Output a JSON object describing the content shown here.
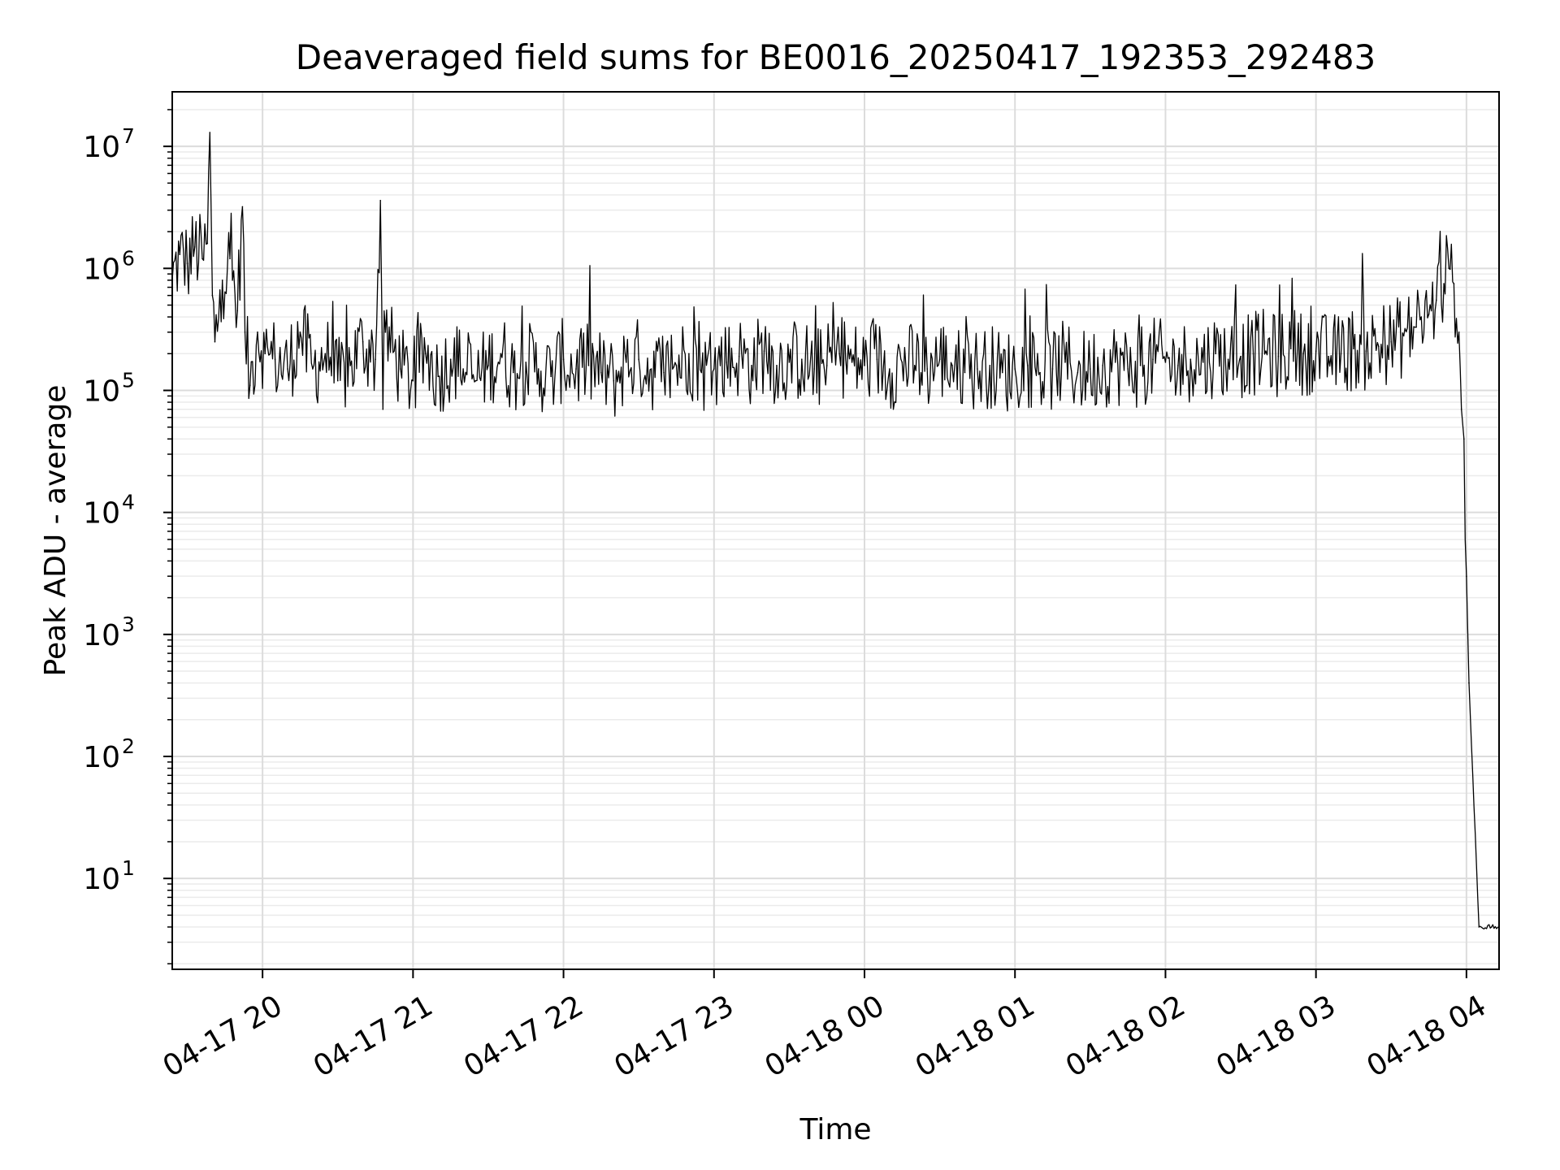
{
  "chart_data": {
    "type": "line",
    "title": "Deaveraged field sums for BE0016_20250417_192353_292483",
    "xlabel": "Time",
    "ylabel": "Peak ADU - average",
    "yscale": "log",
    "grid": true,
    "legend": "none",
    "line_color": "#000000",
    "xlim": [
      "2025-04-17 19:24",
      "2025-04-18 04:13"
    ],
    "ylim": [
      1.8,
      28000000
    ],
    "x_ticks": [
      "2025-04-17 20:00",
      "2025-04-17 21:00",
      "2025-04-17 22:00",
      "2025-04-17 23:00",
      "2025-04-18 00:00",
      "2025-04-18 01:00",
      "2025-04-18 02:00",
      "2025-04-18 03:00",
      "2025-04-18 04:00"
    ],
    "x_tick_labels": [
      "04-17 20",
      "04-17 21",
      "04-17 22",
      "04-17 23",
      "04-18 00",
      "04-18 01",
      "04-18 02",
      "04-18 03",
      "04-18 04"
    ],
    "y_ticks": [
      {
        "value": 10,
        "base": "10",
        "exp": "1"
      },
      {
        "value": 100,
        "base": "10",
        "exp": "2"
      },
      {
        "value": 1000,
        "base": "10",
        "exp": "3"
      },
      {
        "value": 10000,
        "base": "10",
        "exp": "4"
      },
      {
        "value": 100000,
        "base": "10",
        "exp": "5"
      },
      {
        "value": 1000000,
        "base": "10",
        "exp": "6"
      },
      {
        "value": 10000000,
        "base": "10",
        "exp": "7"
      }
    ],
    "series": [
      {
        "x": [
          "2025-04-17 19:24",
          "2025-04-17 19:27",
          "2025-04-17 19:30",
          "2025-04-17 19:33",
          "2025-04-17 19:36",
          "2025-04-17 19:38",
          "2025-04-17 19:39",
          "2025-04-17 19:40",
          "2025-04-17 19:41",
          "2025-04-17 19:44",
          "2025-04-17 19:47",
          "2025-04-17 19:50",
          "2025-04-17 19:52",
          "2025-04-17 19:53",
          "2025-04-17 19:55",
          "2025-04-17 19:58",
          "2025-04-17 20:01",
          "2025-04-17 20:05",
          "2025-04-17 20:10",
          "2025-04-17 20:15",
          "2025-04-17 20:20",
          "2025-04-17 20:25",
          "2025-04-17 20:30",
          "2025-04-17 20:35",
          "2025-04-17 20:40",
          "2025-04-17 20:45",
          "2025-04-17 20:47",
          "2025-04-17 20:48",
          "2025-04-17 20:49",
          "2025-04-17 20:55",
          "2025-04-17 21:00",
          "2025-04-17 21:05",
          "2025-04-17 21:10",
          "2025-04-17 21:15",
          "2025-04-17 21:20",
          "2025-04-17 21:25",
          "2025-04-17 21:30",
          "2025-04-17 21:35",
          "2025-04-17 21:40",
          "2025-04-17 21:45",
          "2025-04-17 21:50",
          "2025-04-17 21:55",
          "2025-04-17 22:00",
          "2025-04-17 22:05",
          "2025-04-17 22:10",
          "2025-04-17 22:15",
          "2025-04-17 22:20",
          "2025-04-17 22:25",
          "2025-04-17 22:30",
          "2025-04-17 22:35",
          "2025-04-17 22:40",
          "2025-04-17 22:45",
          "2025-04-17 22:50",
          "2025-04-17 22:55",
          "2025-04-17 23:00",
          "2025-04-17 23:05",
          "2025-04-17 23:10",
          "2025-04-17 23:15",
          "2025-04-17 23:20",
          "2025-04-17 23:25",
          "2025-04-17 23:30",
          "2025-04-17 23:35",
          "2025-04-17 23:40",
          "2025-04-17 23:45",
          "2025-04-17 23:50",
          "2025-04-17 23:55",
          "2025-04-18 00:00",
          "2025-04-18 00:05",
          "2025-04-18 00:10",
          "2025-04-18 00:15",
          "2025-04-18 00:20",
          "2025-04-18 00:25",
          "2025-04-18 00:30",
          "2025-04-18 00:35",
          "2025-04-18 00:40",
          "2025-04-18 00:45",
          "2025-04-18 00:50",
          "2025-04-18 00:55",
          "2025-04-18 01:00",
          "2025-04-18 01:05",
          "2025-04-18 01:10",
          "2025-04-18 01:15",
          "2025-04-18 01:20",
          "2025-04-18 01:25",
          "2025-04-18 01:30",
          "2025-04-18 01:35",
          "2025-04-18 01:40",
          "2025-04-18 01:45",
          "2025-04-18 01:50",
          "2025-04-18 01:55",
          "2025-04-18 02:00",
          "2025-04-18 02:05",
          "2025-04-18 02:10",
          "2025-04-18 02:15",
          "2025-04-18 02:20",
          "2025-04-18 02:25",
          "2025-04-18 02:30",
          "2025-04-18 02:35",
          "2025-04-18 02:40",
          "2025-04-18 02:45",
          "2025-04-18 02:50",
          "2025-04-18 02:55",
          "2025-04-18 03:00",
          "2025-04-18 03:05",
          "2025-04-18 03:10",
          "2025-04-18 03:15",
          "2025-04-18 03:20",
          "2025-04-18 03:25",
          "2025-04-18 03:30",
          "2025-04-18 03:35",
          "2025-04-18 03:40",
          "2025-04-18 03:45",
          "2025-04-18 03:48",
          "2025-04-18 03:51",
          "2025-04-18 03:53",
          "2025-04-18 03:55",
          "2025-04-18 03:57",
          "2025-04-18 03:58",
          "2025-04-18 03:59",
          "2025-04-18 04:00",
          "2025-04-18 04:01",
          "2025-04-18 04:05",
          "2025-04-18 04:10",
          "2025-04-18 04:13"
        ],
        "y": [
          800000,
          1300000,
          1100000,
          1500000,
          1200000,
          1600000,
          13000000,
          600000,
          250000,
          800000,
          1200000,
          450000,
          3200000,
          300000,
          110000,
          300000,
          200000,
          180000,
          150000,
          300000,
          150000,
          200000,
          120000,
          160000,
          250000,
          180000,
          3600000,
          70000,
          300000,
          150000,
          120000,
          200000,
          130000,
          180000,
          150000,
          120000,
          160000,
          200000,
          140000,
          170000,
          150000,
          130000,
          180000,
          150000,
          160000,
          140000,
          120000,
          170000,
          180000,
          150000,
          140000,
          160000,
          200000,
          140000,
          150000,
          170000,
          190000,
          160000,
          210000,
          160000,
          170000,
          180000,
          150000,
          160000,
          200000,
          170000,
          160000,
          180000,
          150000,
          170000,
          160000,
          150000,
          180000,
          160000,
          140000,
          150000,
          160000,
          140000,
          150000,
          160000,
          140000,
          150000,
          170000,
          140000,
          150000,
          160000,
          170000,
          150000,
          160000,
          180000,
          170000,
          160000,
          180000,
          170000,
          200000,
          180000,
          190000,
          200000,
          210000,
          190000,
          220000,
          200000,
          210000,
          190000,
          200000,
          220000,
          210000,
          230000,
          250000,
          280000,
          330000,
          420000,
          550000,
          750000,
          1000000,
          750000,
          300000,
          70000,
          40000,
          3000,
          400,
          4,
          4,
          4
        ]
      }
    ]
  }
}
